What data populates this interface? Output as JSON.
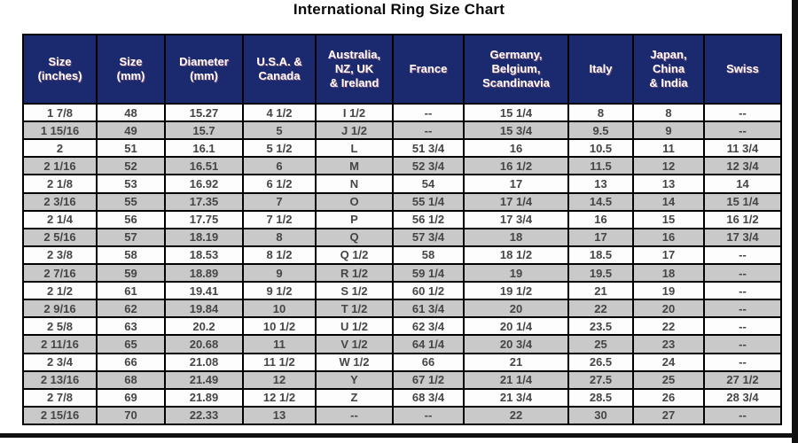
{
  "page": {
    "title": "International Ring Size Chart"
  },
  "chart_data": {
    "type": "table",
    "title": "International Ring Size Chart",
    "columns": [
      "Size\n(inches)",
      "Size\n(mm)",
      "Diameter\n(mm)",
      "U.S.A. &\nCanada",
      "Australia,\nNZ, UK\n& Ireland",
      "France",
      "Germany,\nBelgium,\nScandinavia",
      "Italy",
      "Japan,\nChina\n& India",
      "Swiss"
    ],
    "rows": [
      [
        "1 7/8",
        "48",
        "15.27",
        "4 1/2",
        "I 1/2",
        "--",
        "15 1/4",
        "8",
        "8",
        "--"
      ],
      [
        "1 15/16",
        "49",
        "15.7",
        "5",
        "J 1/2",
        "--",
        "15 3/4",
        "9.5",
        "9",
        "--"
      ],
      [
        "2",
        "51",
        "16.1",
        "5 1/2",
        "L",
        "51 3/4",
        "16",
        "10.5",
        "11",
        "11 3/4"
      ],
      [
        "2 1/16",
        "52",
        "16.51",
        "6",
        "M",
        "52 3/4",
        "16 1/2",
        "11.5",
        "12",
        "12 3/4"
      ],
      [
        "2 1/8",
        "53",
        "16.92",
        "6 1/2",
        "N",
        "54",
        "17",
        "13",
        "13",
        "14"
      ],
      [
        "2 3/16",
        "55",
        "17.35",
        "7",
        "O",
        "55 1/4",
        "17 1/4",
        "14.5",
        "14",
        "15 1/4"
      ],
      [
        "2 1/4",
        "56",
        "17.75",
        "7 1/2",
        "P",
        "56 1/2",
        "17 3/4",
        "16",
        "15",
        "16 1/2"
      ],
      [
        "2 5/16",
        "57",
        "18.19",
        "8",
        "Q",
        "57 3/4",
        "18",
        "17",
        "16",
        "17 3/4"
      ],
      [
        "2 3/8",
        "58",
        "18.53",
        "8 1/2",
        "Q 1/2",
        "58",
        "18 1/2",
        "18.5",
        "17",
        "--"
      ],
      [
        "2 7/16",
        "59",
        "18.89",
        "9",
        "R 1/2",
        "59 1/4",
        "19",
        "19.5",
        "18",
        "--"
      ],
      [
        "2 1/2",
        "61",
        "19.41",
        "9 1/2",
        "S 1/2",
        "60 1/2",
        "19 1/2",
        "21",
        "19",
        "--"
      ],
      [
        "2 9/16",
        "62",
        "19.84",
        "10",
        "T 1/2",
        "61 3/4",
        "20",
        "22",
        "20",
        "--"
      ],
      [
        "2 5/8",
        "63",
        "20.2",
        "10 1/2",
        "U 1/2",
        "62 3/4",
        "20 1/4",
        "23.5",
        "22",
        "--"
      ],
      [
        "2 11/16",
        "65",
        "20.68",
        "11",
        "V 1/2",
        "64 1/4",
        "20 3/4",
        "25",
        "23",
        "--"
      ],
      [
        "2 3/4",
        "66",
        "21.08",
        "11 1/2",
        "W 1/2",
        "66",
        "21",
        "26.5",
        "24",
        "--"
      ],
      [
        "2 13/16",
        "68",
        "21.49",
        "12",
        "Y",
        "67 1/2",
        "21 1/4",
        "27.5",
        "25",
        "27 1/2"
      ],
      [
        "2 7/8",
        "69",
        "21.89",
        "12 1/2",
        "Z",
        "68 3/4",
        "21 3/4",
        "28.5",
        "26",
        "28 3/4"
      ],
      [
        "2 15/16",
        "70",
        "22.33",
        "13",
        "--",
        "--",
        "22",
        "30",
        "27",
        "--"
      ]
    ],
    "layout": {
      "striped": true,
      "first_row_bg": "white",
      "legend": "none",
      "grid": "on"
    },
    "colors": {
      "header_bg": "#1b2a6e",
      "header_text": "#ffffff",
      "row_bg": "#fdfdfd",
      "row_alt_bg": "#c9c9c9",
      "border": "#000000",
      "cell_text": "#454545",
      "title_text": "#0a0a0a"
    }
  }
}
